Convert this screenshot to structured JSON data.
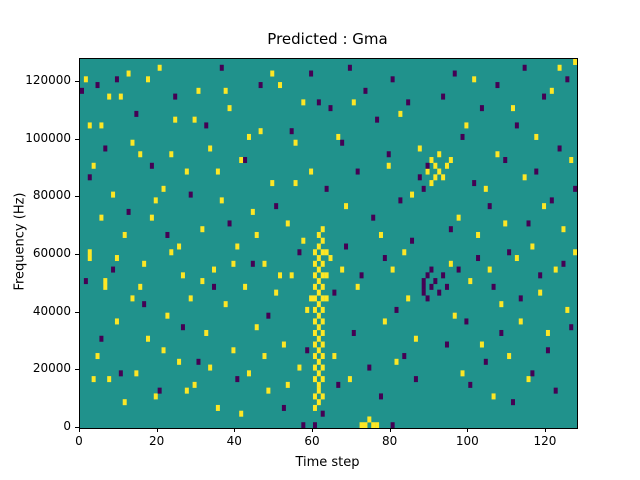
{
  "figure": {
    "title": "Predicted : Gma",
    "xlabel": "Time step",
    "ylabel": "Frequency (Hz)"
  },
  "chart_data": {
    "type": "heatmap",
    "title": "Predicted : Gma",
    "xlabel": "Time step",
    "ylabel": "Frequency (Hz)",
    "xlim": [
      0,
      128
    ],
    "ylim": [
      0,
      128000
    ],
    "x_ticks": [
      0,
      20,
      40,
      60,
      80,
      100,
      120
    ],
    "y_ticks": [
      0,
      20000,
      40000,
      60000,
      80000,
      100000,
      120000
    ],
    "grid": {
      "n_x": 128,
      "n_y": 64,
      "y_bin_hz": 2000
    },
    "legend": "none",
    "colors": {
      "background": "#20928c",
      "high": "#fde725",
      "low": "#440154"
    },
    "cells_high": [
      [
        60,
        3
      ],
      [
        60,
        5
      ],
      [
        60,
        8
      ],
      [
        60,
        10
      ],
      [
        60,
        12
      ],
      [
        60,
        14
      ],
      [
        60,
        16
      ],
      [
        60,
        18
      ],
      [
        60,
        20
      ],
      [
        60,
        22
      ],
      [
        60,
        24
      ],
      [
        60,
        26
      ],
      [
        60,
        28
      ],
      [
        60,
        30
      ],
      [
        61,
        4
      ],
      [
        61,
        6
      ],
      [
        61,
        7
      ],
      [
        61,
        9
      ],
      [
        61,
        11
      ],
      [
        61,
        13
      ],
      [
        61,
        15
      ],
      [
        61,
        17
      ],
      [
        61,
        19
      ],
      [
        61,
        21
      ],
      [
        61,
        23
      ],
      [
        61,
        25
      ],
      [
        61,
        27
      ],
      [
        61,
        29
      ],
      [
        61,
        31
      ],
      [
        61,
        33
      ],
      [
        62,
        5
      ],
      [
        62,
        8
      ],
      [
        62,
        10
      ],
      [
        62,
        12
      ],
      [
        62,
        14
      ],
      [
        62,
        16
      ],
      [
        62,
        18
      ],
      [
        62,
        20
      ],
      [
        62,
        22
      ],
      [
        62,
        24
      ],
      [
        62,
        26
      ],
      [
        62,
        28
      ],
      [
        62,
        30
      ],
      [
        62,
        32
      ],
      [
        62,
        34
      ],
      [
        63,
        22
      ],
      [
        63,
        26
      ],
      [
        63,
        30
      ],
      [
        89,
        44
      ],
      [
        90,
        42
      ],
      [
        90,
        46
      ],
      [
        91,
        43
      ],
      [
        91,
        45
      ],
      [
        92,
        47
      ],
      [
        92,
        44
      ],
      [
        95,
        46
      ],
      [
        1,
        60
      ],
      [
        3,
        45
      ],
      [
        2,
        30
      ],
      [
        2,
        29
      ],
      [
        4,
        12
      ],
      [
        5,
        52
      ],
      [
        6,
        25
      ],
      [
        6,
        24
      ],
      [
        7,
        8
      ],
      [
        8,
        40
      ],
      [
        9,
        18
      ],
      [
        10,
        57
      ],
      [
        11,
        33
      ],
      [
        12,
        61
      ],
      [
        13,
        22
      ],
      [
        14,
        9
      ],
      [
        15,
        47
      ],
      [
        16,
        28
      ],
      [
        17,
        15
      ],
      [
        18,
        36
      ],
      [
        19,
        5
      ],
      [
        20,
        62
      ],
      [
        21,
        41
      ],
      [
        22,
        19
      ],
      [
        23,
        30
      ],
      [
        24,
        53
      ],
      [
        25,
        11
      ],
      [
        26,
        26
      ],
      [
        27,
        44
      ],
      [
        28,
        22
      ],
      [
        29,
        7
      ],
      [
        30,
        58
      ],
      [
        31,
        34
      ],
      [
        32,
        16
      ],
      [
        33,
        48
      ],
      [
        34,
        27
      ],
      [
        35,
        3
      ],
      [
        36,
        39
      ],
      [
        37,
        21
      ],
      [
        38,
        55
      ],
      [
        39,
        13
      ],
      [
        40,
        31
      ],
      [
        41,
        46
      ],
      [
        42,
        24
      ],
      [
        43,
        9
      ],
      [
        44,
        37
      ],
      [
        45,
        17
      ],
      [
        46,
        51
      ],
      [
        47,
        28
      ],
      [
        48,
        6
      ],
      [
        49,
        42
      ],
      [
        50,
        23
      ],
      [
        51,
        59
      ],
      [
        52,
        14
      ],
      [
        53,
        35
      ],
      [
        54,
        26
      ],
      [
        55,
        49
      ],
      [
        56,
        10
      ],
      [
        57,
        32
      ],
      [
        58,
        20
      ],
      [
        59,
        44
      ],
      [
        64,
        29
      ],
      [
        65,
        12
      ],
      [
        66,
        50
      ],
      [
        67,
        27
      ],
      [
        68,
        38
      ],
      [
        69,
        8
      ],
      [
        70,
        56
      ],
      [
        71,
        24
      ],
      [
        72,
        0
      ],
      [
        73,
        0
      ],
      [
        74,
        1
      ],
      [
        75,
        0
      ],
      [
        76,
        0
      ],
      [
        77,
        33
      ],
      [
        78,
        18
      ],
      [
        79,
        45
      ],
      [
        80,
        27
      ],
      [
        81,
        11
      ],
      [
        82,
        54
      ],
      [
        83,
        30
      ],
      [
        84,
        22
      ],
      [
        85,
        40
      ],
      [
        86,
        15
      ],
      [
        87,
        48
      ],
      [
        93,
        43
      ],
      [
        94,
        45
      ],
      [
        95,
        28
      ],
      [
        96,
        19
      ],
      [
        97,
        36
      ],
      [
        98,
        9
      ],
      [
        99,
        52
      ],
      [
        100,
        25
      ],
      [
        101,
        60
      ],
      [
        102,
        33
      ],
      [
        103,
        14
      ],
      [
        104,
        41
      ],
      [
        105,
        27
      ],
      [
        106,
        5
      ],
      [
        107,
        47
      ],
      [
        108,
        21
      ],
      [
        109,
        35
      ],
      [
        110,
        12
      ],
      [
        111,
        55
      ],
      [
        112,
        29
      ],
      [
        113,
        18
      ],
      [
        114,
        43
      ],
      [
        115,
        8
      ],
      [
        116,
        31
      ],
      [
        117,
        50
      ],
      [
        118,
        23
      ],
      [
        119,
        38
      ],
      [
        120,
        16
      ],
      [
        121,
        58
      ],
      [
        122,
        27
      ],
      [
        123,
        62
      ],
      [
        124,
        34
      ],
      [
        125,
        20
      ],
      [
        126,
        46
      ],
      [
        127,
        63
      ],
      [
        127,
        30
      ],
      [
        2,
        52
      ],
      [
        3,
        8
      ],
      [
        5,
        36
      ],
      [
        7,
        57
      ],
      [
        9,
        29
      ],
      [
        11,
        4
      ],
      [
        13,
        49
      ],
      [
        15,
        24
      ],
      [
        17,
        60
      ],
      [
        19,
        39
      ],
      [
        21,
        13
      ],
      [
        23,
        47
      ],
      [
        25,
        31
      ],
      [
        27,
        6
      ],
      [
        29,
        53
      ],
      [
        31,
        25
      ],
      [
        33,
        10
      ],
      [
        35,
        44
      ],
      [
        37,
        58
      ],
      [
        39,
        28
      ],
      [
        41,
        2
      ],
      [
        43,
        50
      ],
      [
        45,
        33
      ],
      [
        47,
        12
      ],
      [
        49,
        61
      ],
      [
        51,
        26
      ],
      [
        53,
        7
      ],
      [
        55,
        42
      ],
      [
        57,
        56
      ],
      [
        59,
        22
      ]
    ],
    "cells_low": [
      [
        0,
        58
      ],
      [
        1,
        25
      ],
      [
        2,
        43
      ],
      [
        4,
        59
      ],
      [
        5,
        15
      ],
      [
        6,
        48
      ],
      [
        8,
        27
      ],
      [
        9,
        60
      ],
      [
        10,
        9
      ],
      [
        12,
        37
      ],
      [
        14,
        54
      ],
      [
        16,
        21
      ],
      [
        18,
        45
      ],
      [
        20,
        6
      ],
      [
        22,
        33
      ],
      [
        24,
        57
      ],
      [
        26,
        17
      ],
      [
        28,
        40
      ],
      [
        30,
        11
      ],
      [
        32,
        52
      ],
      [
        34,
        24
      ],
      [
        36,
        62
      ],
      [
        38,
        35
      ],
      [
        40,
        8
      ],
      [
        42,
        46
      ],
      [
        44,
        28
      ],
      [
        46,
        59
      ],
      [
        48,
        19
      ],
      [
        50,
        38
      ],
      [
        52,
        3
      ],
      [
        54,
        51
      ],
      [
        56,
        30
      ],
      [
        57,
        0
      ],
      [
        58,
        13
      ],
      [
        59,
        61
      ],
      [
        60,
        0
      ],
      [
        61,
        56
      ],
      [
        62,
        2
      ],
      [
        63,
        41
      ],
      [
        64,
        55
      ],
      [
        65,
        23
      ],
      [
        66,
        7
      ],
      [
        67,
        49
      ],
      [
        68,
        31
      ],
      [
        69,
        62
      ],
      [
        70,
        16
      ],
      [
        71,
        44
      ],
      [
        72,
        26
      ],
      [
        73,
        58
      ],
      [
        74,
        10
      ],
      [
        75,
        36
      ],
      [
        76,
        53
      ],
      [
        77,
        5
      ],
      [
        78,
        29
      ],
      [
        79,
        47
      ],
      [
        80,
        0
      ],
      [
        80,
        60
      ],
      [
        81,
        20
      ],
      [
        82,
        39
      ],
      [
        83,
        12
      ],
      [
        84,
        56
      ],
      [
        85,
        32
      ],
      [
        86,
        8
      ],
      [
        87,
        43
      ],
      [
        88,
        23
      ],
      [
        88,
        24
      ],
      [
        88,
        25
      ],
      [
        89,
        22
      ],
      [
        89,
        26
      ],
      [
        90,
        24
      ],
      [
        90,
        27
      ],
      [
        91,
        25
      ],
      [
        92,
        23
      ],
      [
        93,
        26
      ],
      [
        94,
        24
      ],
      [
        88,
        41
      ],
      [
        89,
        45
      ],
      [
        93,
        57
      ],
      [
        94,
        14
      ],
      [
        95,
        34
      ],
      [
        96,
        61
      ],
      [
        97,
        27
      ],
      [
        98,
        50
      ],
      [
        99,
        18
      ],
      [
        100,
        7
      ],
      [
        101,
        42
      ],
      [
        102,
        29
      ],
      [
        103,
        55
      ],
      [
        104,
        11
      ],
      [
        105,
        38
      ],
      [
        106,
        24
      ],
      [
        107,
        59
      ],
      [
        108,
        16
      ],
      [
        109,
        46
      ],
      [
        110,
        30
      ],
      [
        111,
        4
      ],
      [
        112,
        52
      ],
      [
        113,
        22
      ],
      [
        114,
        62
      ],
      [
        115,
        35
      ],
      [
        116,
        9
      ],
      [
        117,
        44
      ],
      [
        118,
        26
      ],
      [
        119,
        57
      ],
      [
        120,
        13
      ],
      [
        121,
        39
      ],
      [
        122,
        6
      ],
      [
        123,
        48
      ],
      [
        124,
        28
      ],
      [
        125,
        60
      ],
      [
        126,
        17
      ],
      [
        127,
        41
      ]
    ]
  }
}
